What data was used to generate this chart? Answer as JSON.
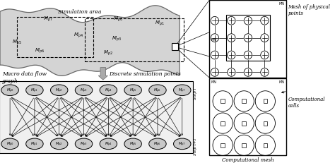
{
  "bg_color": "#ffffff",
  "node_color": "#c8c8c8",
  "labels_top": [
    "$M_{p0}$",
    "$M_{p1}$",
    "$M_{p2}$",
    "$M_{p3}$",
    "$M_{p4}$",
    "$M_{p5}$",
    "$M_{p6}$",
    "$M_{p7}$"
  ],
  "labels_bot": [
    "$M_{p0}$",
    "$M_{p1}$",
    "$M_{p2}$",
    "$M_{p3}$",
    "$M_{p4}$",
    "$M_{p5}$",
    "$M_{p6}$",
    "$M_{p7}$"
  ],
  "sim_labels": [
    [
      "$M_{p7}$",
      68,
      55
    ],
    [
      "$M_{p0}$",
      170,
      38
    ],
    [
      "$M_{p1}$",
      230,
      52
    ],
    [
      "$M_{p4}$",
      120,
      65
    ],
    [
      "$M_{p3}$",
      165,
      68
    ],
    [
      "$M_{p5}$",
      45,
      75
    ],
    [
      "$M_{p6}$",
      55,
      88
    ],
    [
      "$M_{p2}$",
      155,
      92
    ]
  ],
  "macro_label": "Macro data flow\ngraph",
  "discrete_label": "Discrete simulation points",
  "sim_area_label": "Simulation area",
  "mesh_phys_label": "Mesh of physical\npoints",
  "comp_cells_label": "Computational\ncells",
  "comp_mesh_label": "Computational mesh",
  "step_i_label": "Step i",
  "step_i1_label": "Step t+1"
}
